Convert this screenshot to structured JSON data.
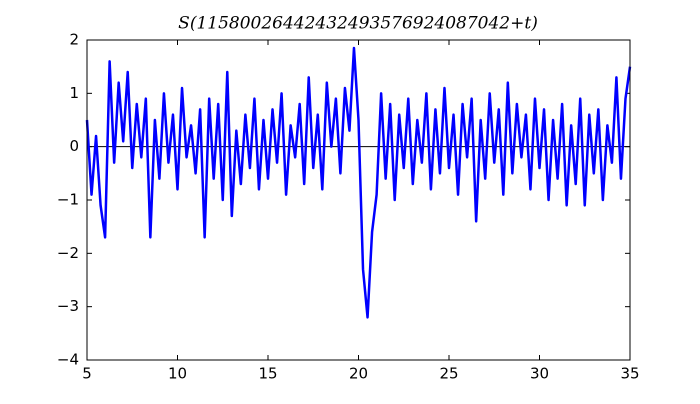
{
  "chart_data": {
    "type": "line",
    "title": "S(11580026442432493576924087042+t)",
    "x": [
      5,
      5.25,
      5.5,
      5.75,
      6,
      6.25,
      6.5,
      6.75,
      7,
      7.25,
      7.5,
      7.75,
      8,
      8.25,
      8.5,
      8.75,
      9,
      9.25,
      9.5,
      9.75,
      10,
      10.25,
      10.5,
      10.75,
      11,
      11.25,
      11.5,
      11.75,
      12,
      12.25,
      12.5,
      12.75,
      13,
      13.25,
      13.5,
      13.75,
      14,
      14.25,
      14.5,
      14.75,
      15,
      15.25,
      15.5,
      15.75,
      16,
      16.25,
      16.5,
      16.75,
      17,
      17.25,
      17.5,
      17.75,
      18,
      18.25,
      18.5,
      18.75,
      19,
      19.25,
      19.5,
      19.75,
      20,
      20.25,
      20.5,
      20.75,
      21,
      21.25,
      21.5,
      21.75,
      22,
      22.25,
      22.5,
      22.75,
      23,
      23.25,
      23.5,
      23.75,
      24,
      24.25,
      24.5,
      24.75,
      25,
      25.25,
      25.5,
      25.75,
      26,
      26.25,
      26.5,
      26.75,
      27,
      27.25,
      27.5,
      27.75,
      28,
      28.25,
      28.5,
      28.75,
      29,
      29.25,
      29.5,
      29.75,
      30,
      30.25,
      30.5,
      30.75,
      31,
      31.25,
      31.5,
      31.75,
      32,
      32.25,
      32.5,
      32.75,
      33,
      33.25,
      33.5,
      33.75,
      34,
      34.25,
      34.5,
      34.75,
      35
    ],
    "values": [
      0.5,
      -0.9,
      0.2,
      -1.1,
      -1.7,
      1.6,
      -0.3,
      1.2,
      0.1,
      1.4,
      -0.4,
      0.8,
      -0.2,
      0.9,
      -1.7,
      0.5,
      -0.6,
      1.0,
      -0.3,
      0.6,
      -0.8,
      1.1,
      -0.2,
      0.4,
      -0.5,
      0.7,
      -1.7,
      0.9,
      -0.6,
      0.8,
      -1.0,
      1.4,
      -1.3,
      0.3,
      -0.7,
      0.6,
      -0.4,
      0.9,
      -0.8,
      0.5,
      -0.6,
      0.7,
      -0.3,
      1.0,
      -0.9,
      0.4,
      -0.2,
      0.8,
      -0.7,
      1.3,
      -0.4,
      0.6,
      -0.8,
      1.2,
      0.0,
      0.9,
      -0.5,
      1.1,
      0.3,
      1.85,
      0.5,
      -2.3,
      -3.2,
      -1.6,
      -0.9,
      1.0,
      -0.6,
      0.8,
      -1.0,
      0.6,
      -0.4,
      0.9,
      -0.7,
      0.5,
      -0.3,
      1.0,
      -0.8,
      0.7,
      -0.5,
      1.1,
      -0.4,
      0.6,
      -0.9,
      0.8,
      -0.2,
      0.9,
      -1.4,
      0.5,
      -0.6,
      1.0,
      -0.3,
      0.7,
      -0.9,
      1.2,
      -0.5,
      0.8,
      -0.2,
      0.6,
      -0.8,
      0.9,
      -0.4,
      0.7,
      -1.0,
      0.5,
      -0.6,
      0.8,
      -1.1,
      0.4,
      -0.7,
      0.9,
      -1.1,
      0.6,
      -0.5,
      0.7,
      -1.0,
      0.4,
      -0.3,
      1.3,
      -0.6,
      0.9,
      1.5
    ],
    "color": "#0000ff",
    "hline": 0,
    "xlim": [
      5,
      35
    ],
    "ylim": [
      -4,
      2
    ],
    "xticks": [
      5,
      10,
      15,
      20,
      25,
      30,
      35
    ],
    "yticks": [
      {
        "value": -4,
        "label": "−4"
      },
      {
        "value": -3,
        "label": "−3"
      },
      {
        "value": -2,
        "label": "−2"
      },
      {
        "value": -1,
        "label": "−1"
      },
      0,
      1,
      2
    ]
  }
}
